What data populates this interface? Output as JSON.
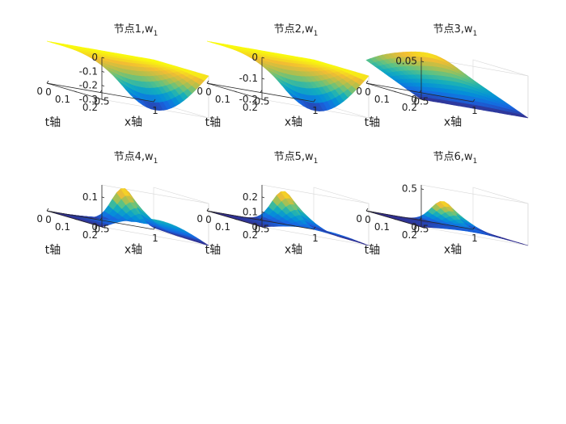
{
  "window": {
    "background": "#ffffff"
  },
  "chart_data": [
    {
      "type": "surface",
      "title": "节点1,w",
      "title_sub": "1",
      "xlabel": "x轴",
      "ylabel": "t轴",
      "xlim": [
        0,
        1
      ],
      "ylim": [
        0,
        0.2
      ],
      "zlim": [
        -0.3,
        0
      ],
      "x_ticks": [
        "0",
        "0.5",
        "1"
      ],
      "y_ticks": [
        "0",
        "0.1",
        "0.2"
      ],
      "z_ticks": [
        {
          "v": 0,
          "label": "0"
        },
        {
          "v": -0.1,
          "label": "-0.1"
        },
        {
          "v": -0.2,
          "label": "-0.2"
        },
        {
          "v": -0.3,
          "label": "-0.3"
        }
      ],
      "surface_shape": "dip",
      "peak": -0.31,
      "colormap": "parula"
    },
    {
      "type": "surface",
      "title": "节点2,w",
      "title_sub": "1",
      "xlabel": "x轴",
      "ylabel": "t轴",
      "xlim": [
        0,
        1
      ],
      "ylim": [
        0,
        0.2
      ],
      "zlim": [
        -0.2,
        0
      ],
      "x_ticks": [
        "0",
        "0.5",
        "1"
      ],
      "y_ticks": [
        "0",
        "0.1",
        "0.2"
      ],
      "z_ticks": [
        {
          "v": 0,
          "label": "0"
        },
        {
          "v": -0.1,
          "label": "-0.1"
        },
        {
          "v": -0.2,
          "label": "-0.2"
        }
      ],
      "surface_shape": "dip",
      "peak": -0.21,
      "colormap": "parula"
    },
    {
      "type": "surface",
      "title": "节点3,w",
      "title_sub": "1",
      "xlabel": "x轴",
      "ylabel": "t轴",
      "xlim": [
        0,
        1
      ],
      "ylim": [
        0,
        0.2
      ],
      "zlim": [
        0,
        0.055
      ],
      "x_ticks": [
        "0",
        "0.5",
        "1"
      ],
      "y_ticks": [
        "0",
        "0.1",
        "0.2"
      ],
      "z_ticks": [
        {
          "v": 0,
          "label": "0"
        },
        {
          "v": 0.05,
          "label": "0.05"
        }
      ],
      "surface_shape": "ridge",
      "peak": 0.055,
      "colormap": "parula"
    },
    {
      "type": "surface",
      "title": "节点4,w",
      "title_sub": "1",
      "xlabel": "x轴",
      "ylabel": "t轴",
      "xlim": [
        0,
        1
      ],
      "ylim": [
        0,
        0.2
      ],
      "zlim": [
        0,
        0.14
      ],
      "x_ticks": [
        "0",
        "0.5",
        "1"
      ],
      "y_ticks": [
        "0",
        "0.1",
        "0.2"
      ],
      "z_ticks": [
        {
          "v": 0,
          "label": "0"
        },
        {
          "v": 0.1,
          "label": "0.1"
        }
      ],
      "surface_shape": "hump",
      "peak": 0.12,
      "base_hump": 0.055,
      "colormap": "parula"
    },
    {
      "type": "surface",
      "title": "节点5,w",
      "title_sub": "1",
      "xlabel": "x轴",
      "ylabel": "t轴",
      "xlim": [
        0,
        1
      ],
      "ylim": [
        0,
        0.2
      ],
      "zlim": [
        0,
        0.28
      ],
      "x_ticks": [
        "0",
        "0.5",
        "1"
      ],
      "y_ticks": [
        "0",
        "0.1",
        "0.2"
      ],
      "z_ticks": [
        {
          "v": 0,
          "label": "0"
        },
        {
          "v": 0.1,
          "label": "0.1"
        },
        {
          "v": 0.2,
          "label": "0.2"
        }
      ],
      "surface_shape": "hump",
      "peak": 0.22,
      "base_hump": 0.05,
      "colormap": "parula"
    },
    {
      "type": "surface",
      "title": "节点6,w",
      "title_sub": "1",
      "xlabel": "x轴",
      "ylabel": "t轴",
      "xlim": [
        0,
        1
      ],
      "ylim": [
        0,
        0.2
      ],
      "zlim": [
        0,
        0.55
      ],
      "x_ticks": [
        "0",
        "0.5",
        "1"
      ],
      "y_ticks": [
        "0",
        "0.1",
        "0.2"
      ],
      "z_ticks": [
        {
          "v": 0,
          "label": "0"
        },
        {
          "v": 0.5,
          "label": "0.5"
        }
      ],
      "surface_shape": "hump",
      "peak": 0.3,
      "base_hump": 0.05,
      "colormap": "parula"
    }
  ]
}
